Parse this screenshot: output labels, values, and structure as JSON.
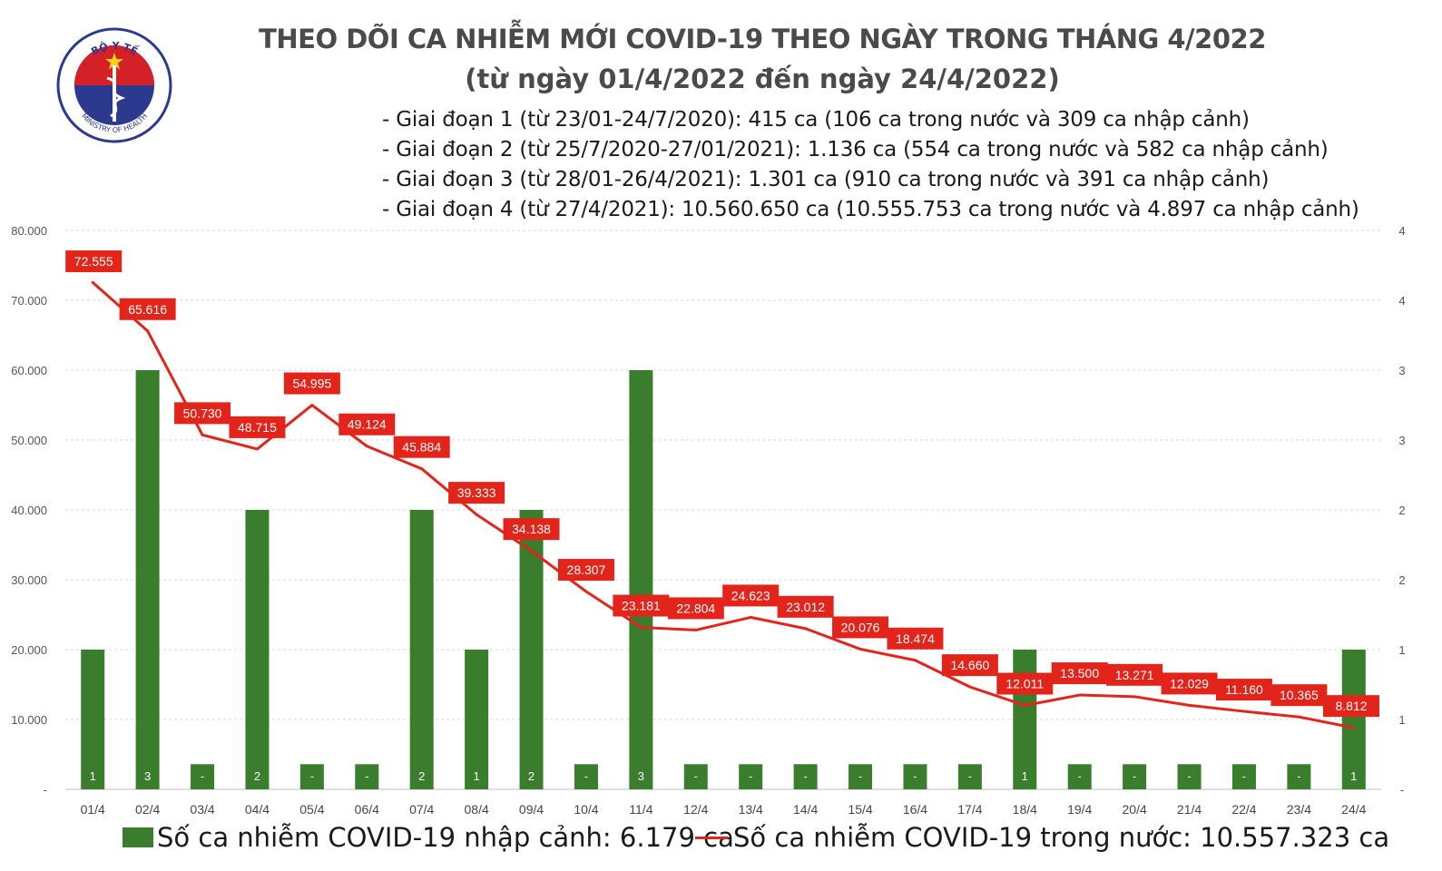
{
  "logo": {
    "top_text": "BỘ Y TẾ",
    "bottom_text": "MINISTRY OF HEALTH",
    "star_color": "#f7d117",
    "ring_color": "#2b3a8f",
    "red_color": "#d42027"
  },
  "title": {
    "line1": "THEO DÕI CA NHIỄM MỚI COVID-19 THEO NGÀY TRONG THÁNG 4/2022",
    "line2": "(từ ngày 01/4/2022 đến ngày 24/4/2022)"
  },
  "notes": [
    "- Giai đoạn 1 (từ 23/01-24/7/2020): 415 ca (106 ca trong nước và 309 ca nhập cảnh)",
    "- Giai đoạn 2 (từ 25/7/2020-27/01/2021): 1.136 ca (554 ca trong nước và 582 ca nhập cảnh)",
    "- Giai đoạn 3 (từ 28/01-26/4/2021): 1.301 ca (910 ca trong nước và 391 ca nhập cảnh)",
    "- Giai đoạn 4 (từ 27/4/2021): 10.560.650 ca (10.555.753 ca trong nước và 4.897 ca nhập cảnh)"
  ],
  "legend": {
    "bar_label": "Số ca nhiễm COVID-19 nhập cảnh: 6.179 ca",
    "line_label": "Số ca nhiễm COVID-19 trong nước: 10.557.323 ca"
  },
  "chart_data": {
    "type": "bar+line",
    "categories": [
      "01/4",
      "02/4",
      "03/4",
      "04/4",
      "05/4",
      "06/4",
      "07/4",
      "08/4",
      "09/4",
      "10/4",
      "11/4",
      "12/4",
      "13/4",
      "14/4",
      "15/4",
      "16/4",
      "17/4",
      "18/4",
      "19/4",
      "20/4",
      "21/4",
      "22/4",
      "23/4",
      "24/4"
    ],
    "series": [
      {
        "name": "Số ca nhiễm COVID-19 nhập cảnh",
        "type": "bar",
        "axis": "right",
        "color": "#3a7d2c",
        "values": [
          1,
          3,
          0,
          2,
          0,
          0,
          2,
          1,
          2,
          0,
          3,
          0,
          0,
          0,
          0,
          0,
          0,
          1,
          0,
          0,
          0,
          0,
          0,
          1
        ],
        "labels": [
          "1",
          "3",
          "-",
          "2",
          "-",
          "-",
          "2",
          "1",
          "2",
          "-",
          "3",
          "-",
          "-",
          "-",
          "-",
          "-",
          "-",
          "1",
          "-",
          "-",
          "-",
          "-",
          "-",
          "1"
        ]
      },
      {
        "name": "Số ca nhiễm COVID-19 trong nước",
        "type": "line",
        "axis": "left",
        "color": "#e3241b",
        "values": [
          72555,
          65616,
          50730,
          48715,
          54995,
          49124,
          45884,
          39333,
          34138,
          28307,
          23181,
          22804,
          24623,
          23012,
          20076,
          18474,
          14660,
          12011,
          13500,
          13271,
          12029,
          11160,
          10365,
          8812
        ],
        "labels": [
          "72.555",
          "65.616",
          "50.730",
          "48.715",
          "54.995",
          "49.124",
          "45.884",
          "39.333",
          "34.138",
          "28.307",
          "23.181",
          "22.804",
          "24.623",
          "23.012",
          "20.076",
          "18.474",
          "14.660",
          "12.011",
          "13.500",
          "13.271",
          "12.029",
          "11.160",
          "10.365",
          "8.812"
        ]
      }
    ],
    "left_axis": {
      "ylim": [
        0,
        80000
      ],
      "tick_labels": [
        "-",
        "10.000",
        "20.000",
        "30.000",
        "40.000",
        "50.000",
        "60.000",
        "70.000",
        "80.000"
      ]
    },
    "right_axis": {
      "ylim": [
        0,
        4
      ],
      "tick_labels": [
        "-",
        "1",
        "1",
        "2",
        "2",
        "3",
        "3",
        "4",
        "4"
      ]
    },
    "grid": true,
    "zero_bar_placeholder": 0.18
  }
}
